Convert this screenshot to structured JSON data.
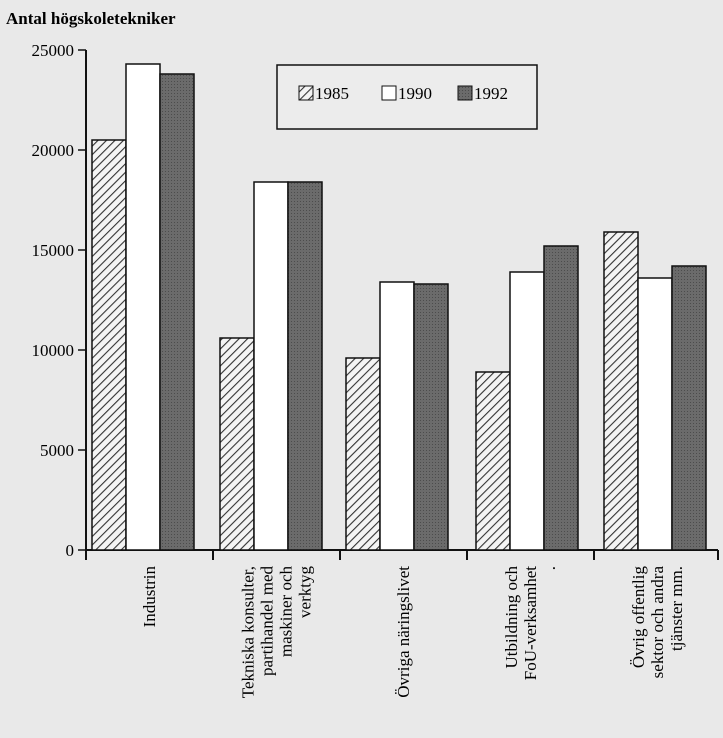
{
  "chart_data": {
    "type": "bar",
    "ylabel": "Antal högskoletekniker",
    "ylim": [
      0,
      25000
    ],
    "yticks": [
      0,
      5000,
      10000,
      15000,
      20000,
      25000
    ],
    "categories": [
      [
        "Industrin"
      ],
      [
        "Tekniska konsulter,",
        "partihandel med",
        "maskiner och",
        "verktyg"
      ],
      [
        "Övriga näringslivet"
      ],
      [
        "Utbildning och",
        "FoU-verksamhet",
        "."
      ],
      [
        "Övrig offentlig",
        "sektor och andra",
        "tjänster mm."
      ]
    ],
    "series": [
      {
        "name": "1985",
        "values": [
          20500,
          10600,
          9600,
          8900,
          15900
        ],
        "fill": "hatch"
      },
      {
        "name": "1990",
        "values": [
          24300,
          18400,
          13400,
          13900,
          13600
        ],
        "fill": "#ffffff"
      },
      {
        "name": "1992",
        "values": [
          23800,
          18400,
          13300,
          15200,
          14200
        ],
        "fill": "#6b6b6b"
      }
    ],
    "legend_position": "top-center",
    "grid": false
  },
  "colors": {
    "background": "#e9e9e9",
    "axis": "#111111",
    "hatch_line": "#333333",
    "dark_bar": "#6b6b6b"
  }
}
